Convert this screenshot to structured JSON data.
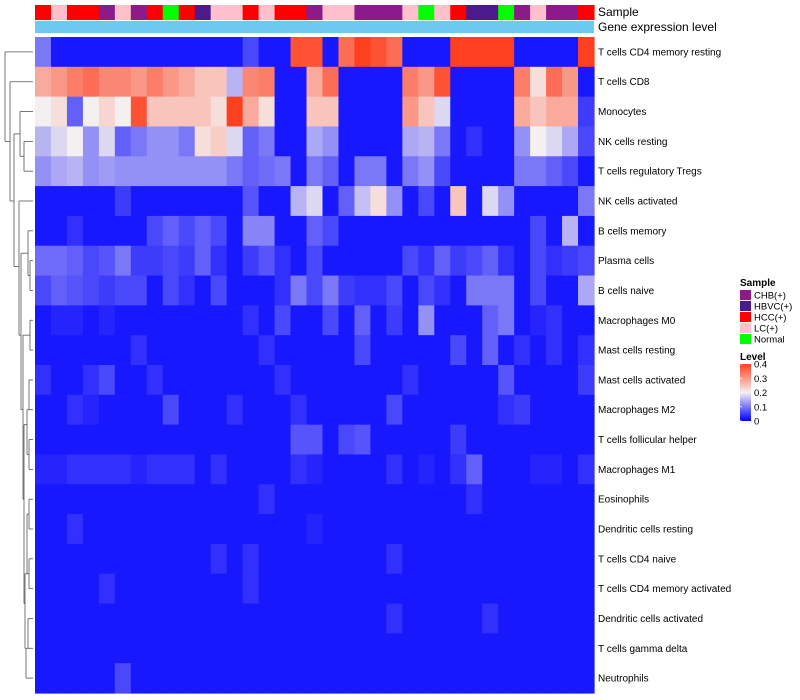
{
  "chart_data": {
    "type": "heatmap",
    "title": "",
    "annotation_tracks": [
      {
        "label": "Sample"
      },
      {
        "label": "Gene expression level"
      }
    ],
    "expression_track_color": "#6ec8f0",
    "rows": [
      "T cells CD4 memory resting",
      "T cells CD8",
      "Monocytes",
      "NK cells resting",
      "T cells regulatory  Tregs",
      "NK cells activated",
      "B cells memory",
      "Plasma cells",
      "B cells naive",
      "Macrophages M0",
      "Mast cells resting",
      "Mast cells activated",
      "Macrophages M2",
      "T cells follicular helper",
      "Macrophages M1",
      "Eosinophils",
      "Dendritic cells resting",
      "T cells CD4 naive",
      "T cells CD4 memory activated",
      "Dendritic cells activated",
      "T cells gamma delta",
      "Neutrophils"
    ],
    "sample_groups": [
      "HCC(+)",
      "LC(+)",
      "HCC(+)",
      "HCC(+)",
      "CHB(+)",
      "LC(+)",
      "CHB(+)",
      "HCC(+)",
      "Normal",
      "HCC(+)",
      "HBVC(+)",
      "LC(+)",
      "LC(+)",
      "HCC(+)",
      "LC(+)",
      "HCC(+)",
      "HCC(+)",
      "CHB(+)",
      "LC(+)",
      "LC(+)",
      "CHB(+)",
      "CHB(+)",
      "CHB(+)",
      "LC(+)",
      "Normal",
      "LC(+)",
      "HCC(+)",
      "HBVC(+)",
      "HBVC(+)",
      "Normal",
      "CHB(+)",
      "LC(+)",
      "CHB(+)",
      "CHB(+)",
      "HCC(+)"
    ],
    "values": [
      [
        0.1,
        0.02,
        0.02,
        0.02,
        0.02,
        0.02,
        0.02,
        0.02,
        0.02,
        0.02,
        0.02,
        0.02,
        0.02,
        0.06,
        0.02,
        0.02,
        0.38,
        0.38,
        0.02,
        0.35,
        0.4,
        0.38,
        0.35,
        0.02,
        0.02,
        0.02,
        0.4,
        0.4,
        0.4,
        0.4,
        0.02,
        0.02,
        0.02,
        0.02,
        0.4
      ],
      [
        0.28,
        0.3,
        0.33,
        0.35,
        0.32,
        0.32,
        0.3,
        0.33,
        0.3,
        0.28,
        0.25,
        0.25,
        0.15,
        0.32,
        0.33,
        0.02,
        0.02,
        0.28,
        0.35,
        0.02,
        0.02,
        0.02,
        0.02,
        0.33,
        0.3,
        0.38,
        0.02,
        0.02,
        0.02,
        0.02,
        0.33,
        0.22,
        0.35,
        0.3,
        0.02
      ],
      [
        0.2,
        0.22,
        0.08,
        0.2,
        0.23,
        0.2,
        0.38,
        0.25,
        0.25,
        0.25,
        0.25,
        0.22,
        0.4,
        0.28,
        0.22,
        0.02,
        0.02,
        0.25,
        0.25,
        0.02,
        0.02,
        0.02,
        0.02,
        0.3,
        0.25,
        0.18,
        0.02,
        0.02,
        0.02,
        0.02,
        0.28,
        0.25,
        0.28,
        0.28,
        0.05
      ],
      [
        0.15,
        0.18,
        0.2,
        0.12,
        0.18,
        0.08,
        0.1,
        0.12,
        0.12,
        0.1,
        0.22,
        0.24,
        0.18,
        0.08,
        0.1,
        0.02,
        0.02,
        0.14,
        0.12,
        0.02,
        0.02,
        0.02,
        0.02,
        0.14,
        0.15,
        0.1,
        0.02,
        0.04,
        0.02,
        0.02,
        0.12,
        0.2,
        0.18,
        0.14,
        0.06
      ],
      [
        0.12,
        0.14,
        0.15,
        0.12,
        0.13,
        0.12,
        0.12,
        0.12,
        0.12,
        0.12,
        0.12,
        0.12,
        0.1,
        0.08,
        0.09,
        0.1,
        0.02,
        0.1,
        0.08,
        0.02,
        0.1,
        0.1,
        0.02,
        0.1,
        0.12,
        0.06,
        0.02,
        0.02,
        0.02,
        0.02,
        0.1,
        0.1,
        0.08,
        0.06,
        0.02
      ],
      [
        0.02,
        0.02,
        0.02,
        0.02,
        0.02,
        0.05,
        0.02,
        0.02,
        0.02,
        0.02,
        0.02,
        0.02,
        0.02,
        0.07,
        0.02,
        0.02,
        0.15,
        0.18,
        0.02,
        0.08,
        0.16,
        0.22,
        0.12,
        0.02,
        0.06,
        0.02,
        0.25,
        0.02,
        0.18,
        0.12,
        0.02,
        0.02,
        0.02,
        0.02,
        0.1
      ],
      [
        0.02,
        0.02,
        0.04,
        0.02,
        0.02,
        0.02,
        0.02,
        0.06,
        0.08,
        0.06,
        0.08,
        0.06,
        0.02,
        0.11,
        0.11,
        0.02,
        0.02,
        0.08,
        0.06,
        0.02,
        0.02,
        0.02,
        0.02,
        0.02,
        0.02,
        0.02,
        0.02,
        0.02,
        0.02,
        0.02,
        0.02,
        0.06,
        0.02,
        0.15,
        0.02
      ],
      [
        0.09,
        0.09,
        0.08,
        0.06,
        0.07,
        0.1,
        0.05,
        0.05,
        0.06,
        0.05,
        0.08,
        0.04,
        0.02,
        0.05,
        0.07,
        0.04,
        0.02,
        0.06,
        0.02,
        0.02,
        0.02,
        0.02,
        0.02,
        0.06,
        0.04,
        0.08,
        0.05,
        0.06,
        0.08,
        0.04,
        0.02,
        0.06,
        0.04,
        0.05,
        0.06
      ],
      [
        0.06,
        0.08,
        0.07,
        0.06,
        0.05,
        0.06,
        0.06,
        0.02,
        0.06,
        0.04,
        0.02,
        0.06,
        0.02,
        0.02,
        0.02,
        0.04,
        0.1,
        0.06,
        0.1,
        0.05,
        0.04,
        0.04,
        0.06,
        0.02,
        0.06,
        0.04,
        0.02,
        0.1,
        0.1,
        0.1,
        0.02,
        0.06,
        0.02,
        0.02,
        0.14
      ],
      [
        0.02,
        0.03,
        0.03,
        0.02,
        0.03,
        0.02,
        0.02,
        0.02,
        0.02,
        0.02,
        0.02,
        0.02,
        0.02,
        0.04,
        0.02,
        0.06,
        0.02,
        0.02,
        0.06,
        0.02,
        0.08,
        0.02,
        0.05,
        0.02,
        0.12,
        0.02,
        0.02,
        0.02,
        0.08,
        0.1,
        0.02,
        0.03,
        0.04,
        0.02,
        0.02
      ],
      [
        0.02,
        0.02,
        0.02,
        0.02,
        0.02,
        0.02,
        0.04,
        0.02,
        0.02,
        0.02,
        0.02,
        0.02,
        0.02,
        0.02,
        0.04,
        0.02,
        0.02,
        0.02,
        0.02,
        0.02,
        0.06,
        0.02,
        0.02,
        0.02,
        0.02,
        0.02,
        0.06,
        0.02,
        0.08,
        0.02,
        0.04,
        0.02,
        0.04,
        0.02,
        0.04
      ],
      [
        0.04,
        0.02,
        0.02,
        0.04,
        0.06,
        0.02,
        0.02,
        0.04,
        0.02,
        0.02,
        0.02,
        0.02,
        0.02,
        0.02,
        0.02,
        0.04,
        0.02,
        0.02,
        0.02,
        0.02,
        0.02,
        0.02,
        0.02,
        0.04,
        0.02,
        0.02,
        0.02,
        0.02,
        0.02,
        0.07,
        0.02,
        0.02,
        0.02,
        0.02,
        0.05
      ],
      [
        0.02,
        0.02,
        0.04,
        0.03,
        0.02,
        0.02,
        0.02,
        0.02,
        0.06,
        0.02,
        0.02,
        0.02,
        0.04,
        0.02,
        0.02,
        0.02,
        0.04,
        0.02,
        0.02,
        0.02,
        0.02,
        0.02,
        0.06,
        0.02,
        0.02,
        0.02,
        0.02,
        0.02,
        0.02,
        0.04,
        0.05,
        0.02,
        0.02,
        0.02,
        0.02
      ],
      [
        0.02,
        0.02,
        0.02,
        0.02,
        0.02,
        0.02,
        0.02,
        0.02,
        0.02,
        0.02,
        0.02,
        0.02,
        0.02,
        0.02,
        0.02,
        0.02,
        0.07,
        0.07,
        0.02,
        0.06,
        0.07,
        0.02,
        0.02,
        0.02,
        0.02,
        0.02,
        0.05,
        0.02,
        0.02,
        0.02,
        0.02,
        0.02,
        0.02,
        0.02,
        0.02
      ],
      [
        0.03,
        0.03,
        0.04,
        0.04,
        0.04,
        0.04,
        0.03,
        0.04,
        0.04,
        0.04,
        0.02,
        0.04,
        0.02,
        0.02,
        0.02,
        0.02,
        0.04,
        0.03,
        0.02,
        0.02,
        0.02,
        0.02,
        0.04,
        0.02,
        0.03,
        0.02,
        0.04,
        0.08,
        0.02,
        0.02,
        0.02,
        0.03,
        0.03,
        0.02,
        0.04
      ],
      [
        0.02,
        0.02,
        0.02,
        0.02,
        0.02,
        0.02,
        0.02,
        0.02,
        0.02,
        0.02,
        0.02,
        0.02,
        0.02,
        0.02,
        0.04,
        0.02,
        0.02,
        0.02,
        0.02,
        0.02,
        0.02,
        0.02,
        0.02,
        0.02,
        0.02,
        0.02,
        0.02,
        0.04,
        0.02,
        0.02,
        0.02,
        0.02,
        0.02,
        0.02,
        0.02
      ],
      [
        0.02,
        0.02,
        0.04,
        0.02,
        0.02,
        0.02,
        0.02,
        0.02,
        0.02,
        0.02,
        0.02,
        0.02,
        0.02,
        0.02,
        0.02,
        0.02,
        0.02,
        0.03,
        0.02,
        0.02,
        0.02,
        0.02,
        0.02,
        0.02,
        0.02,
        0.02,
        0.02,
        0.02,
        0.02,
        0.02,
        0.02,
        0.02,
        0.02,
        0.02,
        0.02
      ],
      [
        0.02,
        0.02,
        0.02,
        0.02,
        0.02,
        0.02,
        0.02,
        0.02,
        0.02,
        0.02,
        0.02,
        0.04,
        0.02,
        0.04,
        0.02,
        0.02,
        0.02,
        0.02,
        0.02,
        0.02,
        0.02,
        0.02,
        0.04,
        0.02,
        0.02,
        0.02,
        0.02,
        0.02,
        0.02,
        0.02,
        0.02,
        0.02,
        0.02,
        0.02,
        0.02
      ],
      [
        0.02,
        0.02,
        0.02,
        0.02,
        0.04,
        0.02,
        0.02,
        0.02,
        0.02,
        0.02,
        0.02,
        0.02,
        0.02,
        0.04,
        0.02,
        0.02,
        0.02,
        0.02,
        0.02,
        0.02,
        0.02,
        0.02,
        0.02,
        0.02,
        0.02,
        0.02,
        0.02,
        0.02,
        0.02,
        0.02,
        0.02,
        0.02,
        0.02,
        0.02,
        0.02
      ],
      [
        0.02,
        0.02,
        0.02,
        0.02,
        0.02,
        0.02,
        0.02,
        0.02,
        0.02,
        0.02,
        0.02,
        0.02,
        0.02,
        0.02,
        0.02,
        0.02,
        0.02,
        0.02,
        0.02,
        0.02,
        0.02,
        0.02,
        0.04,
        0.02,
        0.02,
        0.02,
        0.02,
        0.02,
        0.04,
        0.02,
        0.02,
        0.02,
        0.02,
        0.02,
        0.02
      ],
      [
        0.02,
        0.02,
        0.02,
        0.02,
        0.02,
        0.02,
        0.02,
        0.02,
        0.02,
        0.02,
        0.02,
        0.02,
        0.02,
        0.02,
        0.02,
        0.02,
        0.02,
        0.02,
        0.02,
        0.02,
        0.02,
        0.02,
        0.02,
        0.02,
        0.02,
        0.02,
        0.02,
        0.02,
        0.02,
        0.02,
        0.02,
        0.02,
        0.02,
        0.02,
        0.02
      ],
      [
        0.02,
        0.02,
        0.02,
        0.02,
        0.02,
        0.06,
        0.02,
        0.02,
        0.02,
        0.02,
        0.02,
        0.02,
        0.02,
        0.02,
        0.02,
        0.02,
        0.02,
        0.02,
        0.02,
        0.02,
        0.02,
        0.02,
        0.02,
        0.02,
        0.02,
        0.02,
        0.02,
        0.02,
        0.02,
        0.02,
        0.02,
        0.02,
        0.02,
        0.02,
        0.02
      ]
    ],
    "color_scale": {
      "domain": [
        0,
        0.2,
        0.4
      ],
      "colors": [
        "#0000ff",
        "#f5f0f0",
        "#ff4020"
      ]
    },
    "legend": {
      "sample": {
        "title": "Sample",
        "entries": [
          {
            "label": "CHB(+)",
            "color": "#8b1a8b"
          },
          {
            "label": "HBVC(+)",
            "color": "#4b1a8b"
          },
          {
            "label": "HCC(+)",
            "color": "#ff0000"
          },
          {
            "label": "LC(+)",
            "color": "#ffc0cb"
          },
          {
            "label": "Normal",
            "color": "#00ff00"
          }
        ]
      },
      "level": {
        "title": "Level",
        "ticks": [
          0.4,
          0.3,
          0.2,
          0.1,
          0
        ],
        "tick_labels": [
          "0.4",
          "0.3",
          "0.2",
          "0.1",
          "0"
        ]
      }
    }
  }
}
